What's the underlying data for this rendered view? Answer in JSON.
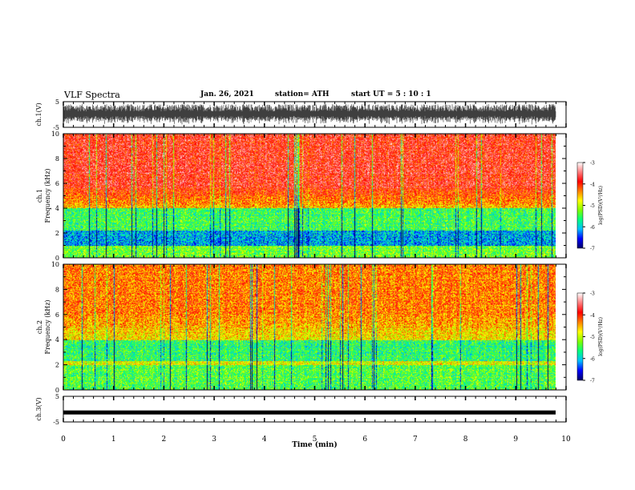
{
  "header": {
    "title": "VLF Spectra",
    "date": "Jan. 26, 2021",
    "station": "station= ATH",
    "start": "start  UT =   5 : 10 : 1"
  },
  "chart_data": {
    "type": "heatmap",
    "xlabel": "Time  (min)",
    "xlim": [
      0,
      10
    ],
    "xticks": [
      "0",
      "1",
      "2",
      "3",
      "4",
      "5",
      "6",
      "7",
      "8",
      "9",
      "10"
    ],
    "panels": [
      {
        "kind": "waveform",
        "ylabel": "ch.1(V)",
        "ylim": [
          -5,
          5
        ],
        "yticks": [
          "5",
          "-5"
        ],
        "amplitude_range": [
          -4,
          4
        ]
      },
      {
        "kind": "spectrogram",
        "ylabel": "ch.1 Frequency (kHz)",
        "ylim": [
          0,
          10
        ],
        "yticks": [
          "0",
          "2",
          "4",
          "6",
          "8",
          "10"
        ],
        "colorbar": {
          "label": "log(PSD)(V²/Hz)",
          "range": [
            -7,
            -3
          ],
          "ticks": [
            "-3",
            "-4",
            "-5",
            "-6",
            "-7"
          ]
        }
      },
      {
        "kind": "spectrogram",
        "ylabel": "ch.2 Frequency (kHz)",
        "ylim": [
          0,
          10
        ],
        "yticks": [
          "0",
          "2",
          "4",
          "6",
          "8",
          "10"
        ],
        "colorbar": {
          "label": "log(PSD)(V²/Hz)",
          "range": [
            -7,
            -3
          ],
          "ticks": [
            "-3",
            "-4",
            "-5",
            "-6",
            "-7"
          ]
        }
      },
      {
        "kind": "waveform",
        "ylabel": "ch.3(V)",
        "ylim": [
          -5,
          5
        ],
        "yticks": [
          "5",
          "-5"
        ],
        "constant_level": -1.3
      }
    ],
    "colormap": [
      "#000066",
      "#0000ff",
      "#00bfff",
      "#00ff80",
      "#80ff00",
      "#ffff00",
      "#ff8000",
      "#ff0000",
      "#ff8080",
      "#ffffff"
    ]
  }
}
